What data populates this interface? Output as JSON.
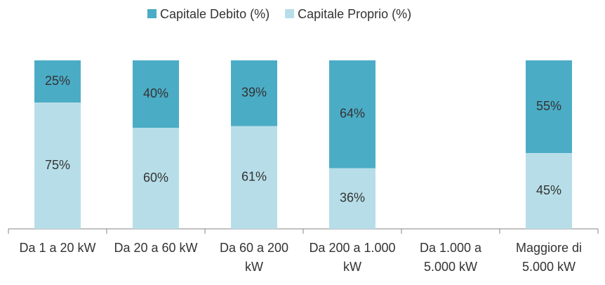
{
  "chart_data": {
    "type": "stacked_bar",
    "categories": [
      "Da 1 a 20 kW",
      "Da 20 a 60 kW",
      "Da 60 a 200 kW",
      "Da 200 a 1.000 kW",
      "Da 1.000 a 5.000 kW",
      "Maggiore di 5.000 kW"
    ],
    "series": [
      {
        "name": "Capitale Proprio (%)",
        "color": "#b7dee8",
        "values": [
          75,
          60,
          61,
          36,
          null,
          45
        ],
        "value_labels": [
          "75%",
          "60%",
          "61%",
          "36%",
          null,
          "45%"
        ]
      },
      {
        "name": "Capitale Debito (%)",
        "color": "#4bacc6",
        "values": [
          25,
          40,
          39,
          64,
          null,
          55
        ],
        "value_labels": [
          "25%",
          "40%",
          "39%",
          "64%",
          null,
          "55%"
        ]
      }
    ],
    "legend_order": [
      1,
      0
    ],
    "ylim": [
      0,
      100
    ]
  }
}
